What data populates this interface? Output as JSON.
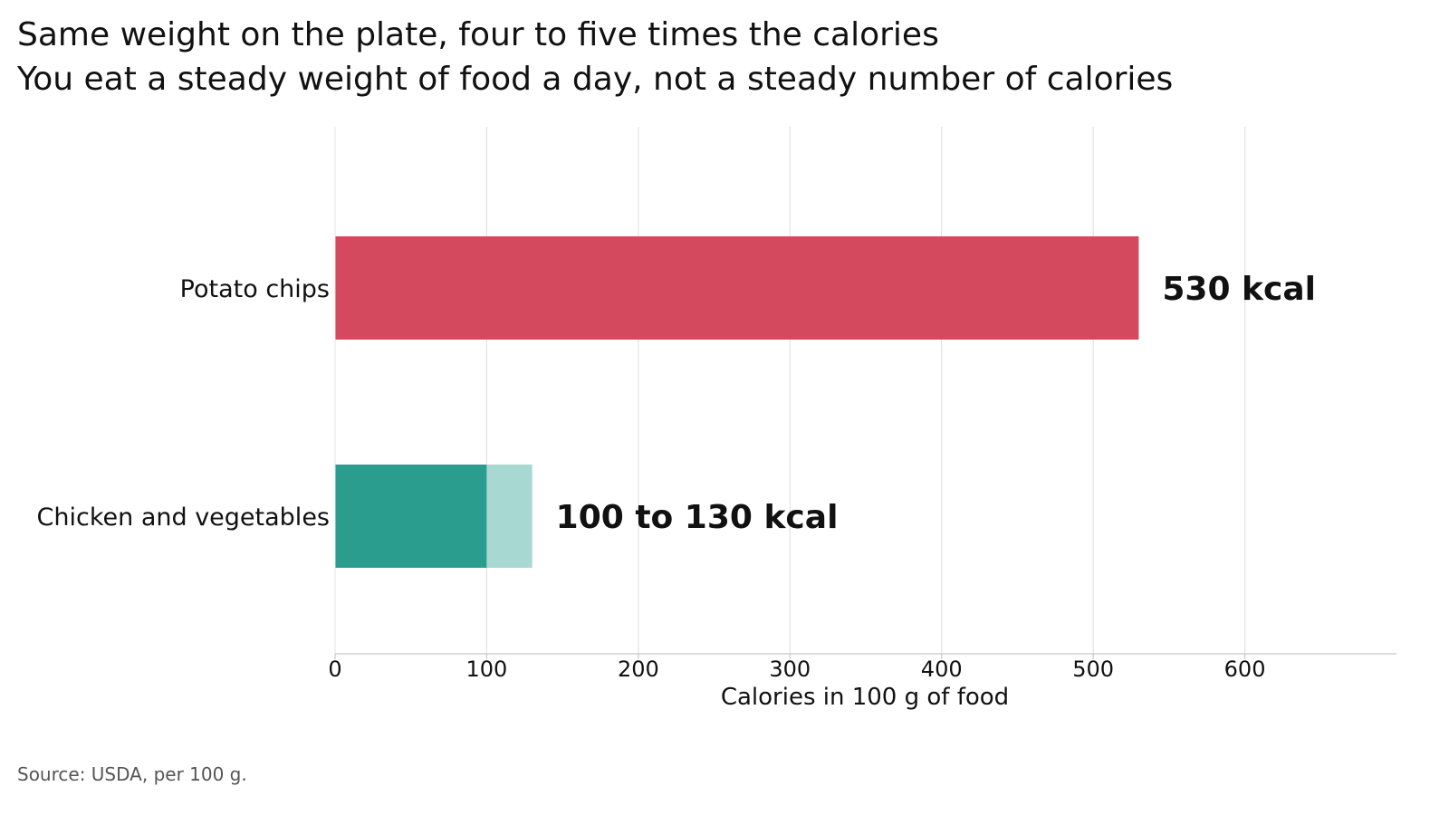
{
  "chart_data": {
    "type": "bar",
    "orientation": "horizontal",
    "title": "Same weight on the plate, four to five times the calories",
    "subtitle": "You eat a steady weight of food a day, not a steady number of calories",
    "xlabel": "Calories in 100 g of food",
    "ylabel": "",
    "xlim": [
      0,
      700
    ],
    "xticks": [
      0,
      100,
      200,
      300,
      400,
      500,
      600
    ],
    "grid": "vertical",
    "categories": [
      "Potato chips",
      "Chicken and vegetables"
    ],
    "bars": [
      {
        "category": "Potato chips",
        "value": 530,
        "color": "#d4495e",
        "label": "530 kcal"
      },
      {
        "category": "Chicken and vegetables",
        "value_low": 100,
        "value_high": 130,
        "color": "#2a9d8f",
        "range_color": "#a8d8d2",
        "label": "100 to 130 kcal"
      }
    ],
    "source": "Source: USDA, per 100 g."
  }
}
